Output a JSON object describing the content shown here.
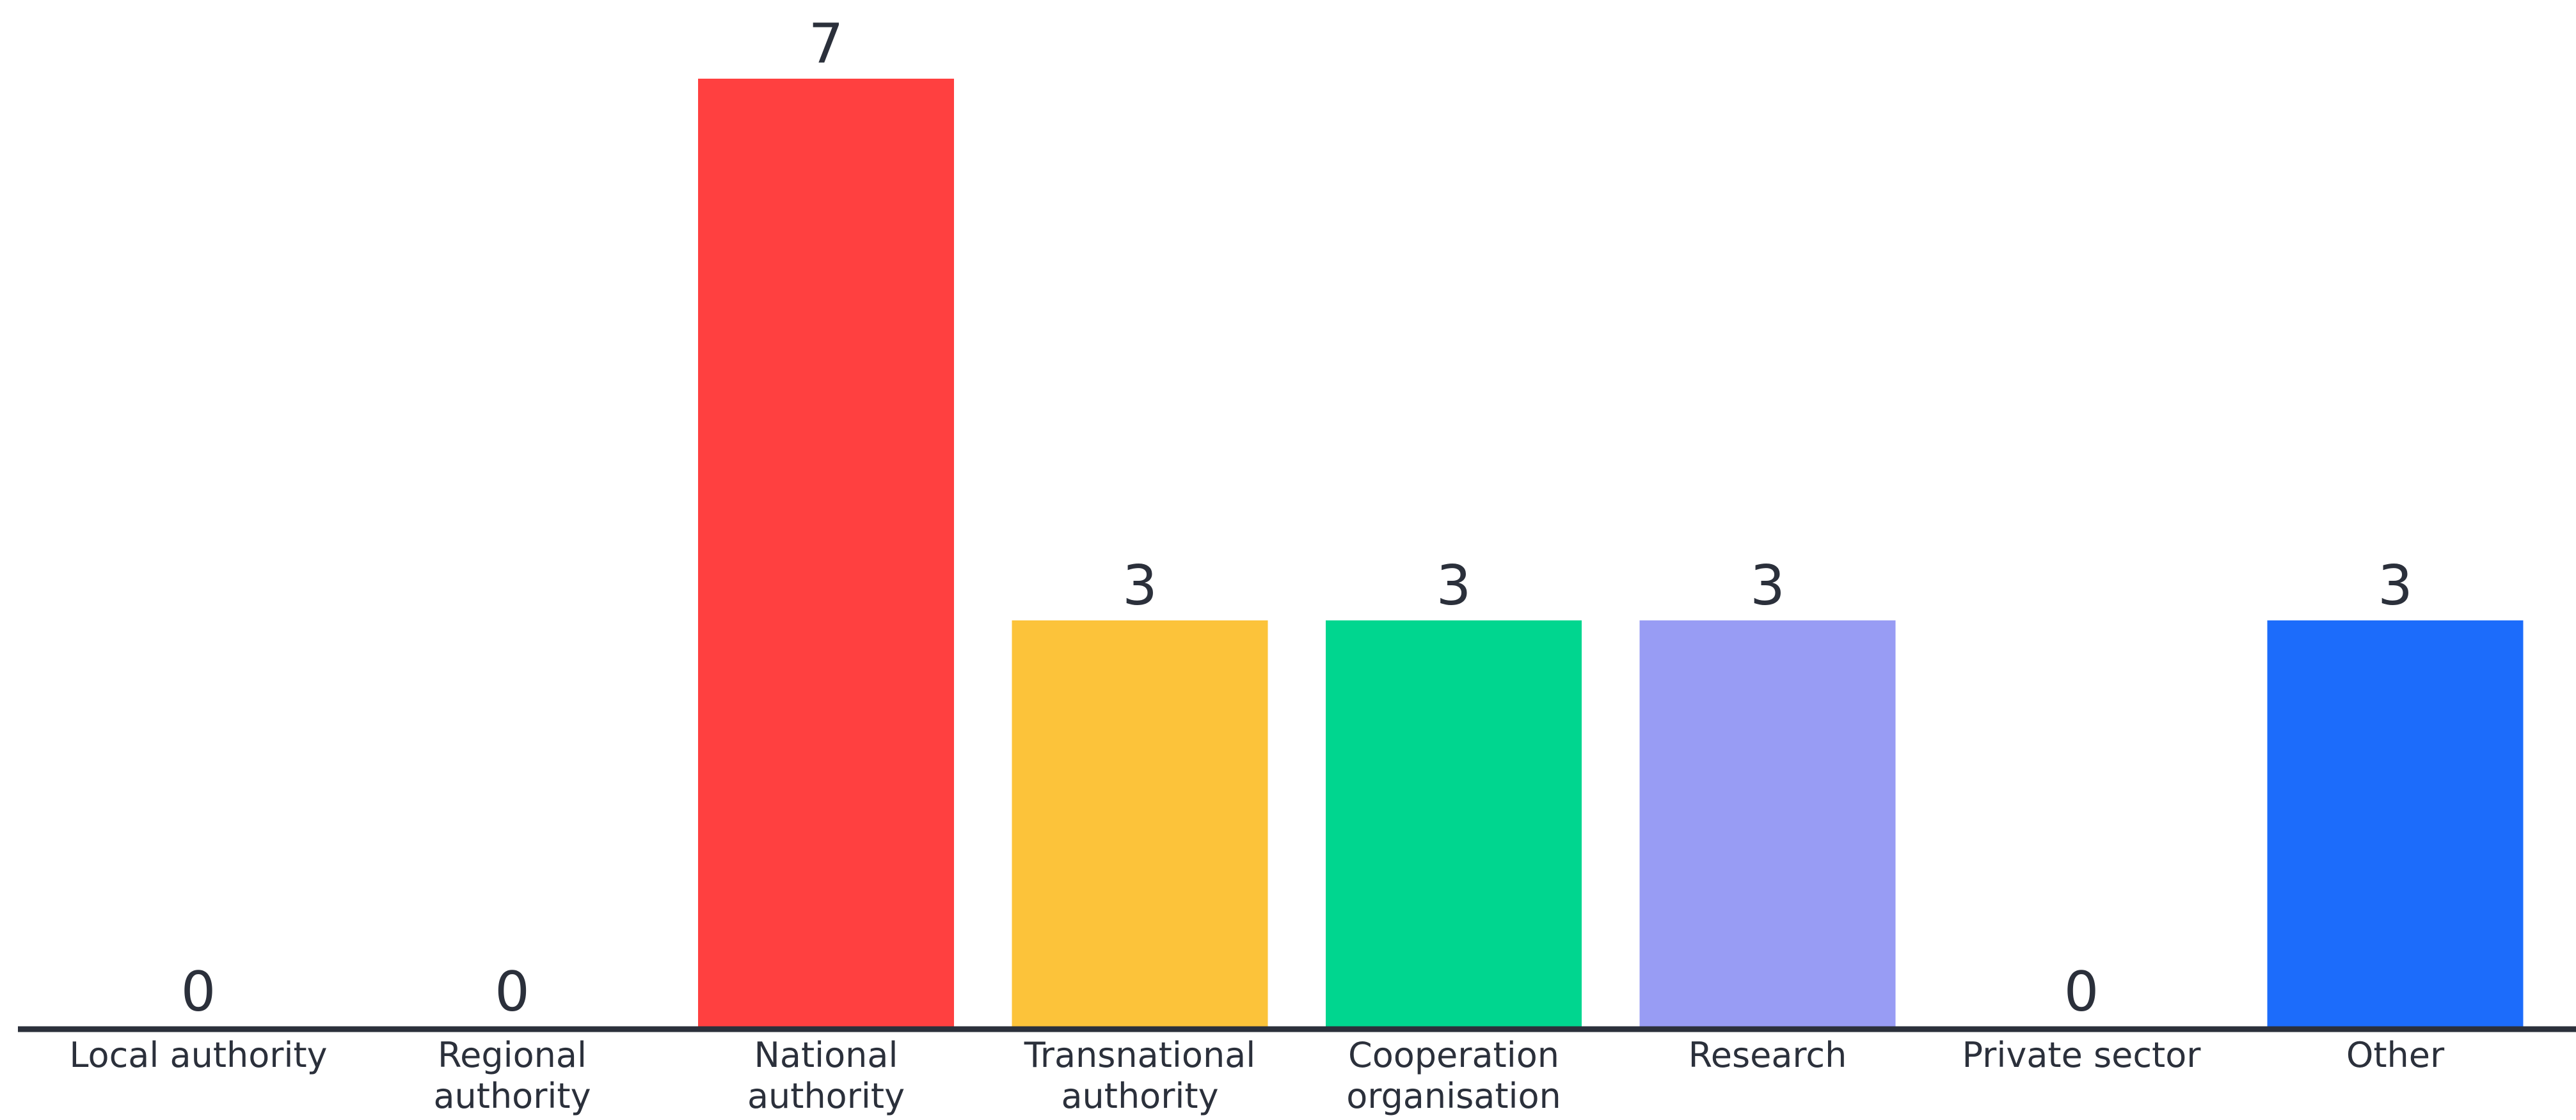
{
  "chart_data": {
    "type": "bar",
    "categories": [
      [
        "Local authority"
      ],
      [
        "Regional",
        "authority"
      ],
      [
        "National",
        "authority"
      ],
      [
        "Transnational",
        "authority"
      ],
      [
        "Cooperation",
        "organisation"
      ],
      [
        "Research"
      ],
      [
        "Private sector"
      ],
      [
        "Other"
      ]
    ],
    "values": [
      0,
      0,
      7,
      3,
      3,
      3,
      0,
      3
    ],
    "colors": [
      "#ff4040",
      "#ff4040",
      "#ff4040",
      "#fcc33a",
      "#00d68f",
      "#989cf4",
      "#989cf4",
      "#1c6cfb"
    ],
    "axis_color": "#2b303b",
    "ylim": [
      0,
      7
    ],
    "title": "",
    "xlabel": "",
    "ylabel": "",
    "grid": false,
    "legend": "none"
  }
}
